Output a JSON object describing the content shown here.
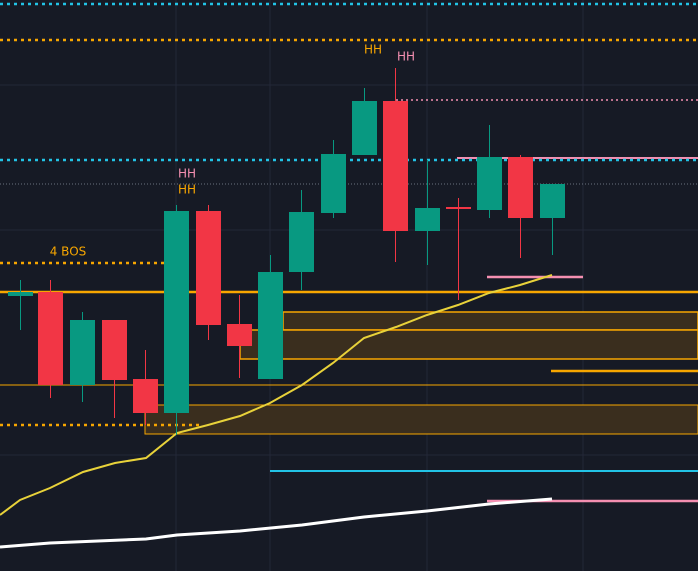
{
  "labels": [
    {
      "text": "HH"
    },
    {
      "text": "HH"
    },
    {
      "text": "HH"
    },
    {
      "text": "HH"
    },
    {
      "text": "4 BOS"
    }
  ]
}
